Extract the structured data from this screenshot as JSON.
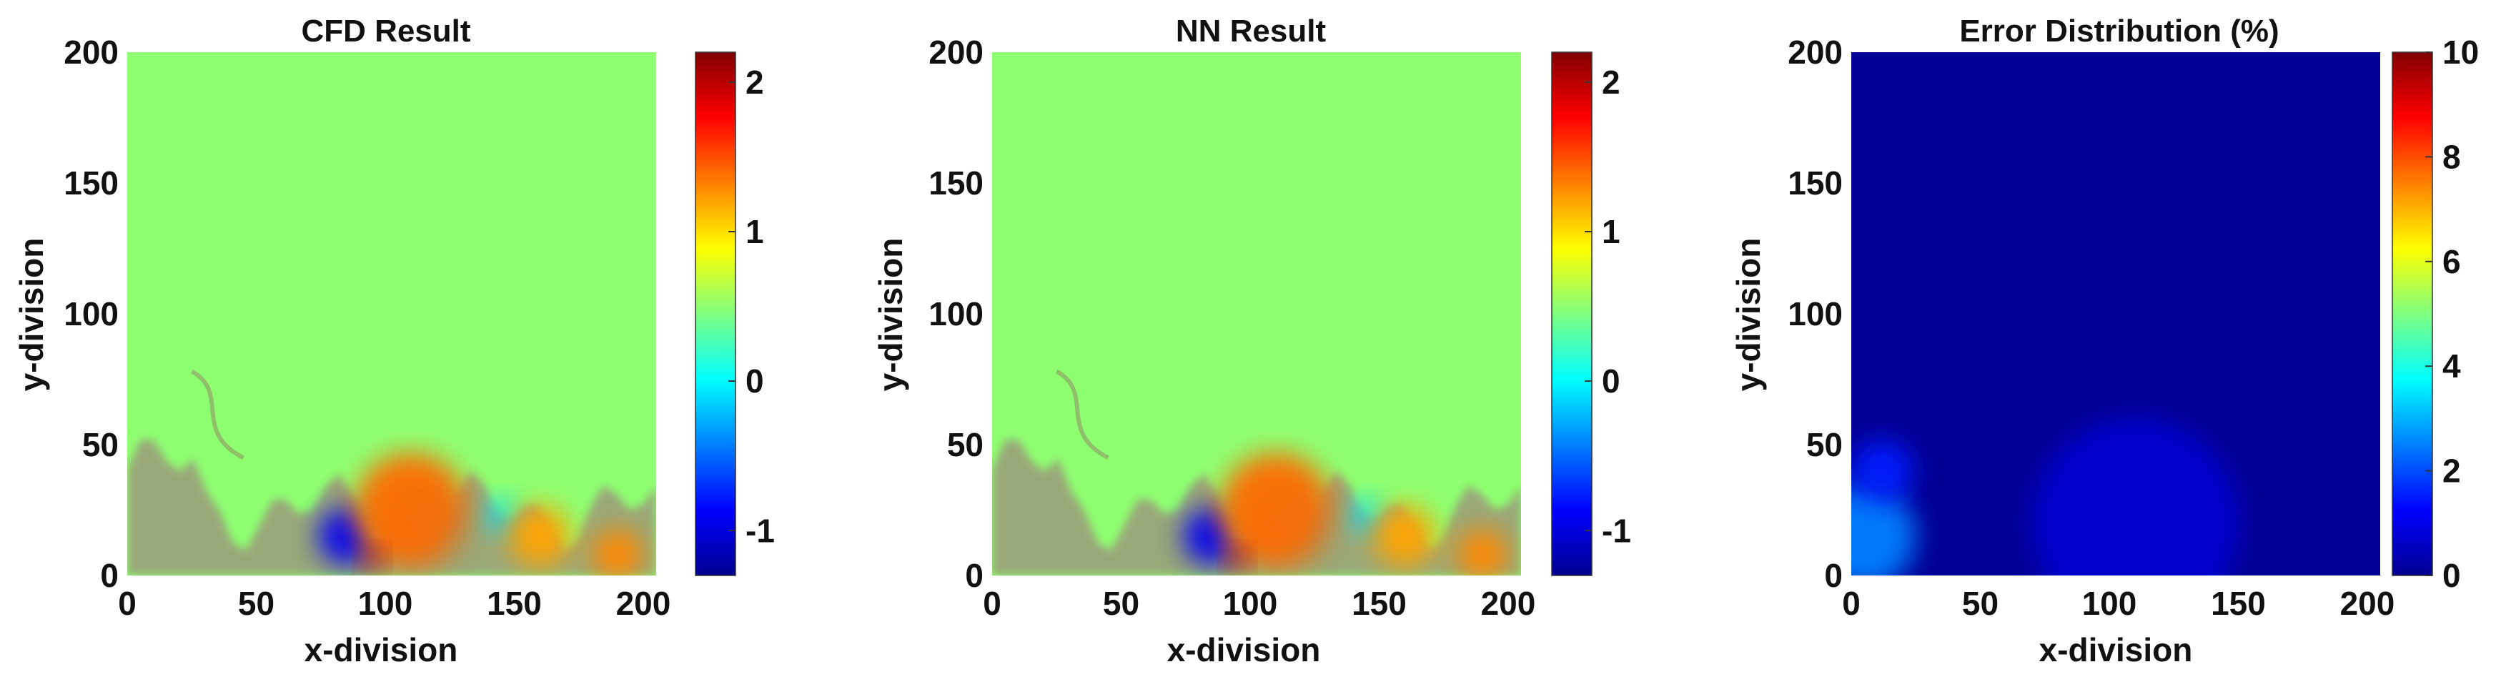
{
  "chart_data": [
    {
      "type": "heatmap",
      "title": "CFD Result",
      "xlabel": "x-division",
      "ylabel": "y-division",
      "xlim": [
        0,
        205
      ],
      "ylim": [
        0,
        200
      ],
      "xticks": [
        "0",
        "50",
        "100",
        "150",
        "200"
      ],
      "yticks": [
        "0",
        "50",
        "100",
        "150",
        "200"
      ],
      "colorbar": {
        "range": [
          -1.3,
          2.2
        ],
        "ticks": [
          "-1",
          "0",
          "1",
          "2"
        ],
        "tick_values": [
          -1,
          0,
          1,
          2
        ]
      },
      "field": {
        "background_value": 0.5,
        "interface_height": 45,
        "blobs": [
          {
            "x": 85,
            "y": 15,
            "r": 11,
            "value": -0.9
          },
          {
            "x": 118,
            "y": 22,
            "r": 9,
            "value": -0.2
          },
          {
            "x": 145,
            "y": 23,
            "r": 6,
            "value": -0.1
          },
          {
            "x": 110,
            "y": 25,
            "r": 22,
            "value": 1.4
          },
          {
            "x": 95,
            "y": 6,
            "r": 4,
            "value": 2.0
          },
          {
            "x": 160,
            "y": 15,
            "r": 12,
            "value": 1.2
          },
          {
            "x": 190,
            "y": 8,
            "r": 10,
            "value": 1.3
          }
        ]
      }
    },
    {
      "type": "heatmap",
      "title": "NN Result",
      "xlabel": "x-division",
      "ylabel": "y-division",
      "xlim": [
        0,
        205
      ],
      "ylim": [
        0,
        200
      ],
      "xticks": [
        "0",
        "50",
        "100",
        "150",
        "200"
      ],
      "yticks": [
        "0",
        "50",
        "100",
        "150",
        "200"
      ],
      "colorbar": {
        "range": [
          -1.3,
          2.2
        ],
        "ticks": [
          "-1",
          "0",
          "1",
          "2"
        ],
        "tick_values": [
          -1,
          0,
          1,
          2
        ]
      },
      "field": {
        "background_value": 0.5,
        "interface_height": 45,
        "blobs": [
          {
            "x": 85,
            "y": 15,
            "r": 11,
            "value": -0.9
          },
          {
            "x": 118,
            "y": 22,
            "r": 9,
            "value": -0.2
          },
          {
            "x": 145,
            "y": 23,
            "r": 6,
            "value": -0.1
          },
          {
            "x": 110,
            "y": 25,
            "r": 22,
            "value": 1.4
          },
          {
            "x": 95,
            "y": 6,
            "r": 4,
            "value": 2.0
          },
          {
            "x": 160,
            "y": 15,
            "r": 12,
            "value": 1.2
          },
          {
            "x": 190,
            "y": 8,
            "r": 10,
            "value": 1.3
          }
        ]
      }
    },
    {
      "type": "heatmap",
      "title": "Error Distribution (%)",
      "xlabel": "x-division",
      "ylabel": "y-division",
      "xlim": [
        0,
        205
      ],
      "ylim": [
        0,
        200
      ],
      "xticks": [
        "0",
        "50",
        "100",
        "150",
        "200"
      ],
      "yticks": [
        "0",
        "50",
        "100",
        "150",
        "200"
      ],
      "colorbar": {
        "range": [
          0,
          10
        ],
        "ticks": [
          "0",
          "2",
          "4",
          "6",
          "8",
          "10"
        ],
        "tick_values": [
          0,
          2,
          4,
          6,
          8,
          10
        ]
      },
      "field": {
        "background_value": 0.2,
        "blobs": [
          {
            "x": 5,
            "y": 15,
            "r": 20,
            "value": 2.5
          },
          {
            "x": 12,
            "y": 40,
            "r": 12,
            "value": 1.5
          },
          {
            "x": 110,
            "y": 20,
            "r": 40,
            "value": 0.8
          }
        ]
      }
    }
  ]
}
